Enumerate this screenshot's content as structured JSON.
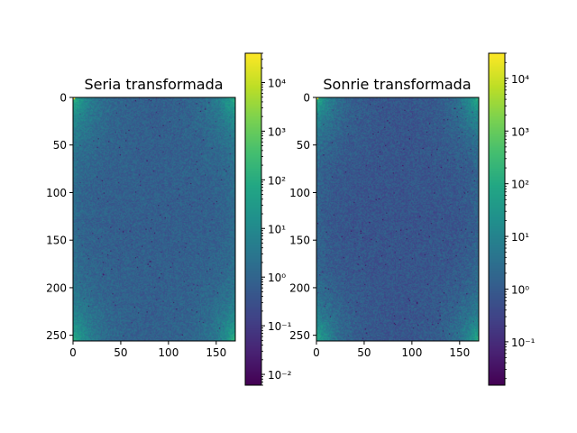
{
  "chart_data": [
    {
      "type": "heatmap",
      "title": "Seria transformada",
      "xlabel": "",
      "ylabel": "",
      "image_shape": [
        256,
        170
      ],
      "xlim": [
        0,
        170
      ],
      "ylim": [
        256,
        0
      ],
      "xticks": [
        0,
        50,
        100,
        150
      ],
      "yticks": [
        0,
        50,
        100,
        150,
        200,
        250
      ],
      "colormap": "viridis",
      "colorbar": {
        "scale": "log",
        "range": [
          0.006,
          40000
        ],
        "major_exponents": [
          -2,
          -1,
          0,
          1,
          2,
          3,
          4
        ]
      },
      "seed": 11
    },
    {
      "type": "heatmap",
      "title": "Sonrie transformada",
      "xlabel": "",
      "ylabel": "",
      "image_shape": [
        256,
        170
      ],
      "xlim": [
        0,
        170
      ],
      "ylim": [
        256,
        0
      ],
      "xticks": [
        0,
        50,
        100,
        150
      ],
      "yticks": [
        0,
        50,
        100,
        150,
        200,
        250
      ],
      "colormap": "viridis",
      "colorbar": {
        "scale": "log",
        "range": [
          0.015,
          30000
        ],
        "major_exponents": [
          -1,
          0,
          1,
          2,
          3,
          4
        ]
      },
      "seed": 29
    }
  ]
}
